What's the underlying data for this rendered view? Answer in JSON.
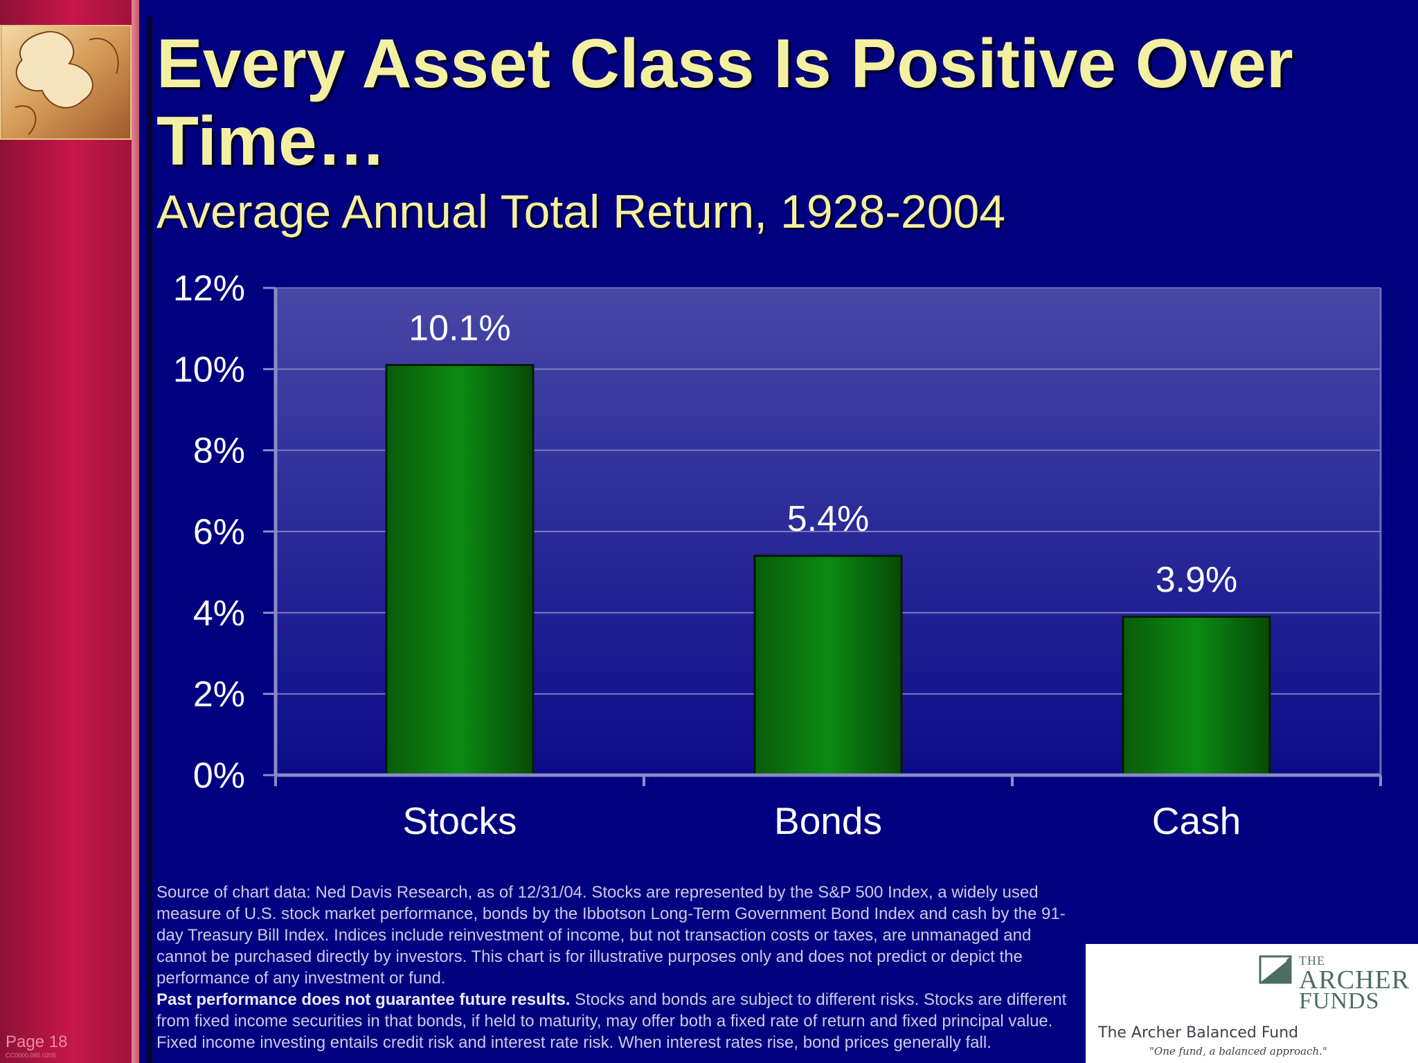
{
  "slide": {
    "title": "Every Asset Class Is Positive Over Time…",
    "subtitle": "Average Annual Total Return, 1928-2004",
    "page_label": "Page 18",
    "page_code": "CC0000.085.0205"
  },
  "colors": {
    "background": "#000080",
    "bar": "#0a7a0a",
    "title": "#f4f0a2",
    "strip": "#c6174a"
  },
  "icons": {
    "puzzle": "puzzle-pieces-image",
    "logo": "archer-funds-logo"
  },
  "chart_data": {
    "type": "bar",
    "categories": [
      "Stocks",
      "Bonds",
      "Cash"
    ],
    "values": [
      10.1,
      5.4,
      3.9
    ],
    "data_labels": [
      "10.1%",
      "5.4%",
      "3.9%"
    ],
    "ylim": [
      0,
      12
    ],
    "yticks": [
      0,
      2,
      4,
      6,
      8,
      10,
      12
    ],
    "ytick_labels": [
      "0%",
      "2%",
      "4%",
      "6%",
      "8%",
      "10%",
      "12%"
    ],
    "grid": true,
    "title": "",
    "xlabel": "",
    "ylabel": ""
  },
  "footnote": {
    "source_text": "Source of chart data: Ned Davis Research, as of 12/31/04. Stocks are represented by the S&P 500 Index, a widely used measure of U.S. stock market performance, bonds by the Ibbotson Long-Term Government Bond Index and cash by the 91-day Treasury Bill Index. Indices include reinvestment of income, but not transaction costs or taxes, are unmanaged and cannot be purchased directly by investors. This chart is for illustrative purposes only and does not predict or depict the performance of any investment or fund.",
    "warning_bold": "Past performance does not guarantee future results.",
    "warning_text": " Stocks and bonds are subject to different risks. Stocks are different from fixed income securities in that bonds, if held to maturity, may offer both a fixed rate of return and fixed principal value. Fixed income investing entails credit risk and interest rate risk. When interest rates rise, bond prices generally fall."
  },
  "logo": {
    "the": "THE",
    "archer": "ARCHER",
    "funds": "FUNDS",
    "fund_name": "The Archer Balanced Fund",
    "tagline": "\"One fund, a balanced approach.\""
  }
}
